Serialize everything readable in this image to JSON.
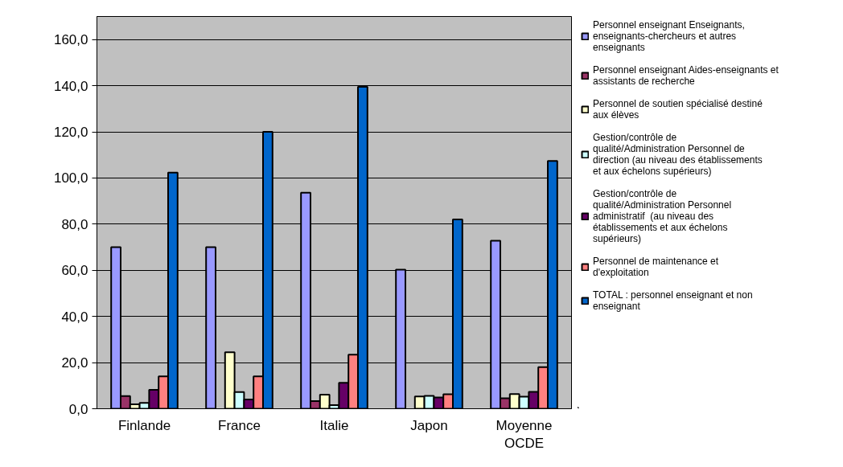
{
  "chart_data": {
    "type": "bar",
    "categories": [
      "Finlande",
      "France",
      "Italie",
      "Japon",
      "Moyenne OCDE"
    ],
    "series": [
      {
        "name": "Personnel enseignant Enseignants, enseignants-chercheurs et autres enseignants",
        "color": "#9999ff",
        "values": [
          70.0,
          70.0,
          93.6,
          60.3,
          72.8
        ]
      },
      {
        "name": "Personnel enseignant Aides-enseignants et assistants de recherche",
        "color": "#993366",
        "values": [
          5.5,
          null,
          3.3,
          null,
          4.5
        ]
      },
      {
        "name": "Personnel de soutien spécialisé destiné aux élèves",
        "color": "#ffffcc",
        "values": [
          1.9,
          24.5,
          6.1,
          5.3,
          6.4
        ]
      },
      {
        "name": "Gestion/contrôle de qualité/Administration Personnel de direction (au niveau des établissements et aux échelons supérieurs)",
        "color": "#ccffff",
        "values": [
          2.5,
          7.2,
          1.6,
          5.6,
          5.2
        ]
      },
      {
        "name": "Gestion/contrôle de qualité/Administration Personnel administratif  (au niveau des établissements et aux échelons supérieurs)",
        "color": "#660066",
        "values": [
          8.2,
          4.0,
          11.2,
          4.9,
          7.3
        ]
      },
      {
        "name": "Personnel de maintenance et d'exploitation",
        "color": "#ff8080",
        "values": [
          14.0,
          14.0,
          23.4,
          6.3,
          18.0
        ]
      },
      {
        "name": "TOTAL : personnel enseignant et non enseignant",
        "color": "#0066cc",
        "values": [
          102.3,
          120.0,
          139.5,
          82.0,
          107.4
        ]
      }
    ],
    "ylim": [
      0,
      170
    ],
    "yticks": [
      {
        "value": 0,
        "label": "0,0"
      },
      {
        "value": 20,
        "label": "20,0"
      },
      {
        "value": 40,
        "label": "40,0"
      },
      {
        "value": 60,
        "label": "60,0"
      },
      {
        "value": 80,
        "label": "80,0"
      },
      {
        "value": 100,
        "label": "100,0"
      },
      {
        "value": 120,
        "label": "120,0"
      },
      {
        "value": 140,
        "label": "140,0"
      },
      {
        "value": 160,
        "label": "160,0"
      }
    ],
    "grid": "y",
    "legend": "right"
  }
}
